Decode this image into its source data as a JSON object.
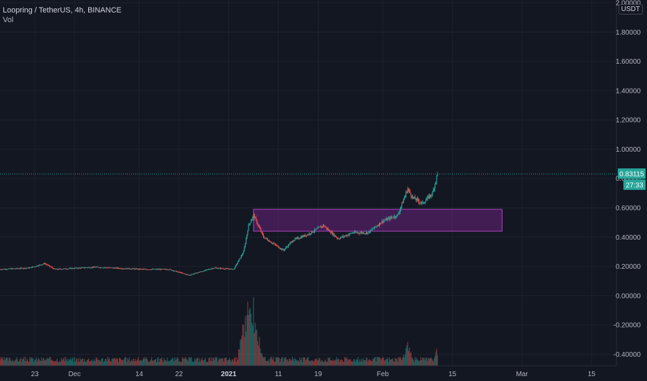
{
  "legend": {
    "symbol": "Loopring / TetherUS, 4h, BINANCE",
    "volume_label": "Vol"
  },
  "price_axis": {
    "unit": "USDT",
    "last_price": "0.83115",
    "countdown": "27:33"
  },
  "colors": {
    "background": "#131722",
    "grid": "#1e222d",
    "up": "#26a69a",
    "down": "#ef5350",
    "zone_fill": "rgba(156,39,176,0.35)",
    "zone_border": "#ab47bc",
    "badge": "#26a69a"
  },
  "chart_data": {
    "type": "candlestick",
    "title": "",
    "y_axis": {
      "min": -0.45,
      "max": 2.0,
      "ticks": [
        2.0,
        1.8,
        1.6,
        1.4,
        1.2,
        1.0,
        0.8,
        0.6,
        0.4,
        0.2,
        0.0,
        -0.2,
        -0.4
      ],
      "tick_labels": [
        "2.00000",
        "1.80000",
        "1.60000",
        "1.40000",
        "1.20000",
        "1.00000",
        "0.80000",
        "0.60000",
        "0.40000",
        "0.20000",
        "0.00000",
        "-0.20000",
        "-0.40000"
      ]
    },
    "x_axis": {
      "start": "2020-11-16",
      "end": "2021-03-20",
      "tick_labels": [
        {
          "date": "2020-11-23",
          "label": "23"
        },
        {
          "date": "2020-12-01",
          "label": "Dec"
        },
        {
          "date": "2020-12-14",
          "label": "14"
        },
        {
          "date": "2020-12-22",
          "label": "22"
        },
        {
          "date": "2021-01-01",
          "label": "2021"
        },
        {
          "date": "2021-01-11",
          "label": "11"
        },
        {
          "date": "2021-01-19",
          "label": "19"
        },
        {
          "date": "2021-02-01",
          "label": "Feb"
        },
        {
          "date": "2021-02-15",
          "label": "15"
        },
        {
          "date": "2021-03-01",
          "label": "Mar"
        },
        {
          "date": "2021-03-15",
          "label": "15"
        }
      ]
    },
    "price_path": [
      {
        "date": "2020-11-16",
        "close": 0.18
      },
      {
        "date": "2020-11-22",
        "close": 0.19
      },
      {
        "date": "2020-11-25",
        "close": 0.22
      },
      {
        "date": "2020-11-27",
        "close": 0.18
      },
      {
        "date": "2020-12-05",
        "close": 0.195
      },
      {
        "date": "2020-12-15",
        "close": 0.18
      },
      {
        "date": "2020-12-20",
        "close": 0.18
      },
      {
        "date": "2020-12-24",
        "close": 0.14
      },
      {
        "date": "2020-12-29",
        "close": 0.19
      },
      {
        "date": "2021-01-02",
        "close": 0.18
      },
      {
        "date": "2021-01-04",
        "close": 0.3
      },
      {
        "date": "2021-01-05",
        "close": 0.48
      },
      {
        "date": "2021-01-06",
        "close": 0.55
      },
      {
        "date": "2021-01-08",
        "close": 0.4
      },
      {
        "date": "2021-01-12",
        "close": 0.31
      },
      {
        "date": "2021-01-14",
        "close": 0.38
      },
      {
        "date": "2021-01-17",
        "close": 0.42
      },
      {
        "date": "2021-01-20",
        "close": 0.48
      },
      {
        "date": "2021-01-23",
        "close": 0.39
      },
      {
        "date": "2021-01-26",
        "close": 0.43
      },
      {
        "date": "2021-01-29",
        "close": 0.43
      },
      {
        "date": "2021-02-01",
        "close": 0.51
      },
      {
        "date": "2021-02-04",
        "close": 0.55
      },
      {
        "date": "2021-02-06",
        "close": 0.73
      },
      {
        "date": "2021-02-07",
        "close": 0.67
      },
      {
        "date": "2021-02-09",
        "close": 0.63
      },
      {
        "date": "2021-02-11",
        "close": 0.7
      },
      {
        "date": "2021-02-12",
        "close": 0.83115
      }
    ],
    "volume_spikes": [
      {
        "date": "2021-01-05",
        "value": 1.0
      },
      {
        "date": "2021-01-06",
        "value": 0.78
      },
      {
        "date": "2021-01-04",
        "value": 0.55
      },
      {
        "date": "2021-01-07",
        "value": 0.4
      },
      {
        "date": "2021-02-06",
        "value": 0.33
      },
      {
        "date": "2021-02-12",
        "value": 0.22
      }
    ],
    "annotations": [
      {
        "type": "rectangle",
        "start": "2021-01-06",
        "end": "2021-02-25",
        "low": 0.44,
        "high": 0.59
      }
    ],
    "last_price_line": 0.83115,
    "grid": true,
    "legend_position": "top-left"
  }
}
